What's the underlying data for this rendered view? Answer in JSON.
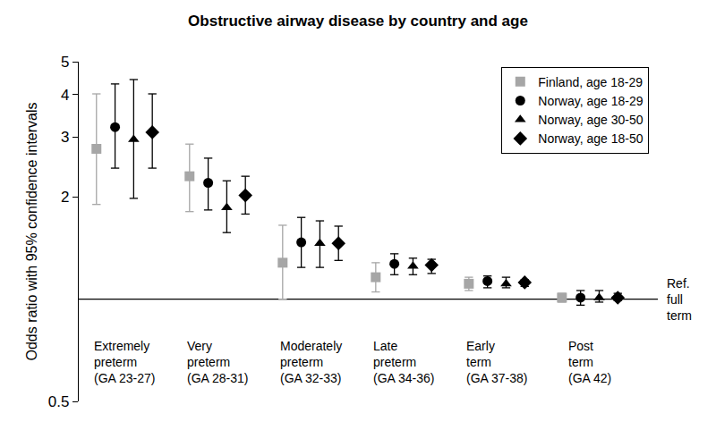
{
  "chart_data": {
    "type": "scatter",
    "title": "Obstructive airway disease by country and age",
    "y_label": "Odds ratio with 95% confidence intervals",
    "log": "y",
    "grid": false,
    "legend": "top right",
    "categories": [
      "Extremely\npreterm\n(GA 23-27)",
      "Very\npreterm\n(GA 28-31)",
      "Moderately\npreterm\n(GA 32-33)",
      "Late\npreterm\n(GA 34-36)",
      "Early\nterm\n(GA 37-38)",
      "Post\nterm\n(GA 42)"
    ],
    "ylim": [
      0.5,
      5
    ],
    "yticks": [
      0.5,
      2,
      3,
      4,
      5
    ],
    "annotations": [
      {
        "text": "Ref.\nfull\nterm",
        "y": 1
      }
    ],
    "series": [
      {
        "name": "Finland, age 18-29",
        "color": "#a6a6a6",
        "marker": "square",
        "values": [
          2.77,
          2.3,
          1.28,
          1.16,
          1.11,
          1.01
        ],
        "ci_lower": [
          1.9,
          1.81,
          1.0,
          1.05,
          1.06,
          0.98
        ],
        "ci_upper": [
          4.02,
          2.86,
          1.65,
          1.28,
          1.16,
          1.04
        ]
      },
      {
        "name": "Norway, age 18-29",
        "color": "#000000",
        "marker": "circle",
        "values": [
          3.21,
          2.2,
          1.47,
          1.27,
          1.13,
          1.01
        ],
        "ci_lower": [
          2.43,
          1.83,
          1.24,
          1.18,
          1.08,
          0.96
        ],
        "ci_upper": [
          4.3,
          2.6,
          1.74,
          1.36,
          1.17,
          1.06
        ]
      },
      {
        "name": "Norway, age 30-50",
        "color": "#000000",
        "marker": "triangle",
        "values": [
          2.95,
          1.86,
          1.46,
          1.25,
          1.11,
          1.01
        ],
        "ci_lower": [
          1.98,
          1.57,
          1.24,
          1.18,
          1.08,
          0.98
        ],
        "ci_upper": [
          4.43,
          2.23,
          1.7,
          1.32,
          1.16,
          1.06
        ]
      },
      {
        "name": "Norway, age 18-50",
        "color": "#000000",
        "marker": "diamond",
        "values": [
          3.1,
          2.02,
          1.46,
          1.26,
          1.12,
          1.01
        ],
        "ci_lower": [
          2.43,
          1.78,
          1.3,
          1.19,
          1.09,
          0.99
        ],
        "ci_upper": [
          4.02,
          2.3,
          1.64,
          1.31,
          1.14,
          1.04
        ]
      }
    ]
  }
}
